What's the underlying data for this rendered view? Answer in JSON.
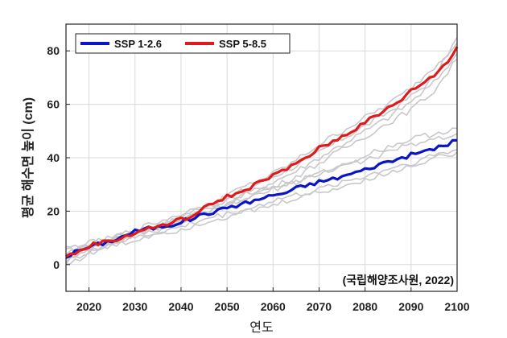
{
  "chart_data": {
    "type": "line",
    "title": "",
    "xlabel": "연도",
    "ylabel": "평균 해수면 높이 (cm)",
    "xlim": [
      2015,
      2100
    ],
    "ylim": [
      -10,
      90
    ],
    "xticks": [
      2020,
      2030,
      2040,
      2050,
      2060,
      2070,
      2080,
      2090,
      2100
    ],
    "yticks": [
      0,
      20,
      40,
      60,
      80
    ],
    "grid": true,
    "legend_position": "top-left",
    "annotation": "(국립해양조사원, 2022)",
    "series": [
      {
        "name": "SSP 1-2.6",
        "color": "#0a14c8",
        "points": [
          [
            2015,
            3
          ],
          [
            2018,
            5.5
          ],
          [
            2020,
            6.5
          ],
          [
            2022,
            7.5
          ],
          [
            2025,
            9
          ],
          [
            2028,
            11
          ],
          [
            2030,
            12.5
          ],
          [
            2033,
            13.5
          ],
          [
            2035,
            14
          ],
          [
            2038,
            15
          ],
          [
            2040,
            16
          ],
          [
            2043,
            17.5
          ],
          [
            2045,
            19
          ],
          [
            2048,
            20
          ],
          [
            2050,
            21.5
          ],
          [
            2053,
            22.5
          ],
          [
            2055,
            23.5
          ],
          [
            2058,
            25
          ],
          [
            2060,
            26
          ],
          [
            2063,
            27
          ],
          [
            2065,
            28.5
          ],
          [
            2068,
            30
          ],
          [
            2070,
            31
          ],
          [
            2073,
            32
          ],
          [
            2075,
            33
          ],
          [
            2078,
            34.5
          ],
          [
            2080,
            35.5
          ],
          [
            2083,
            37.5
          ],
          [
            2085,
            38.5
          ],
          [
            2088,
            40
          ],
          [
            2090,
            41
          ],
          [
            2093,
            42.5
          ],
          [
            2095,
            43.5
          ],
          [
            2098,
            45
          ],
          [
            2100,
            46.5
          ]
        ]
      },
      {
        "name": "SSP 5-8.5",
        "color": "#e01a1a",
        "points": [
          [
            2015,
            3
          ],
          [
            2018,
            5
          ],
          [
            2020,
            7
          ],
          [
            2022,
            8
          ],
          [
            2025,
            9
          ],
          [
            2028,
            10.5
          ],
          [
            2030,
            12
          ],
          [
            2033,
            13.5
          ],
          [
            2035,
            14.5
          ],
          [
            2038,
            15.5
          ],
          [
            2040,
            17
          ],
          [
            2043,
            18.5
          ],
          [
            2045,
            21
          ],
          [
            2048,
            24
          ],
          [
            2050,
            25.5
          ],
          [
            2053,
            27
          ],
          [
            2055,
            29
          ],
          [
            2058,
            31.5
          ],
          [
            2060,
            33.5
          ],
          [
            2063,
            35.5
          ],
          [
            2065,
            38
          ],
          [
            2068,
            41
          ],
          [
            2070,
            43.5
          ],
          [
            2073,
            46
          ],
          [
            2075,
            48
          ],
          [
            2078,
            51
          ],
          [
            2080,
            53.5
          ],
          [
            2083,
            56
          ],
          [
            2085,
            58.5
          ],
          [
            2088,
            62
          ],
          [
            2090,
            65
          ],
          [
            2093,
            68.5
          ],
          [
            2095,
            71
          ],
          [
            2098,
            76
          ],
          [
            2100,
            81.5
          ]
        ]
      }
    ],
    "ensemble_color": "#c8c8cc",
    "ensemble": [
      [
        [
          2015,
          5
        ],
        [
          2020,
          7
        ],
        [
          2025,
          9
        ],
        [
          2030,
          13
        ],
        [
          2035,
          14
        ],
        [
          2040,
          18
        ],
        [
          2045,
          22
        ],
        [
          2050,
          25
        ],
        [
          2055,
          29
        ],
        [
          2060,
          33
        ],
        [
          2065,
          37
        ],
        [
          2070,
          42
        ],
        [
          2075,
          47
        ],
        [
          2080,
          52
        ],
        [
          2085,
          57
        ],
        [
          2090,
          63
        ],
        [
          2095,
          70
        ],
        [
          2100,
          85
        ]
      ],
      [
        [
          2015,
          1
        ],
        [
          2020,
          5
        ],
        [
          2025,
          8
        ],
        [
          2030,
          11
        ],
        [
          2035,
          13
        ],
        [
          2040,
          16
        ],
        [
          2045,
          19
        ],
        [
          2050,
          23
        ],
        [
          2055,
          27
        ],
        [
          2060,
          31
        ],
        [
          2065,
          35
        ],
        [
          2070,
          40
        ],
        [
          2075,
          45
        ],
        [
          2080,
          50
        ],
        [
          2085,
          55
        ],
        [
          2090,
          61
        ],
        [
          2095,
          68
        ],
        [
          2100,
          79
        ]
      ],
      [
        [
          2015,
          4
        ],
        [
          2020,
          8
        ],
        [
          2025,
          10
        ],
        [
          2030,
          12
        ],
        [
          2035,
          15
        ],
        [
          2040,
          17
        ],
        [
          2045,
          21
        ],
        [
          2050,
          26
        ],
        [
          2055,
          30
        ],
        [
          2060,
          34
        ],
        [
          2065,
          39
        ],
        [
          2070,
          45
        ],
        [
          2075,
          50
        ],
        [
          2080,
          55
        ],
        [
          2085,
          60
        ],
        [
          2090,
          66
        ],
        [
          2095,
          74
        ],
        [
          2100,
          83
        ]
      ],
      [
        [
          2015,
          2
        ],
        [
          2020,
          6
        ],
        [
          2025,
          9
        ],
        [
          2030,
          12
        ],
        [
          2035,
          14
        ],
        [
          2040,
          17
        ],
        [
          2045,
          20
        ],
        [
          2050,
          22
        ],
        [
          2055,
          26
        ],
        [
          2060,
          29
        ],
        [
          2065,
          33
        ],
        [
          2070,
          38
        ],
        [
          2075,
          43
        ],
        [
          2080,
          48
        ],
        [
          2085,
          53
        ],
        [
          2090,
          58
        ],
        [
          2095,
          65
        ],
        [
          2100,
          77
        ]
      ],
      [
        [
          2015,
          6
        ],
        [
          2020,
          8
        ],
        [
          2025,
          10
        ],
        [
          2030,
          13
        ],
        [
          2035,
          16
        ],
        [
          2040,
          19
        ],
        [
          2045,
          22
        ],
        [
          2050,
          24
        ],
        [
          2055,
          27
        ],
        [
          2060,
          29
        ],
        [
          2065,
          31
        ],
        [
          2070,
          34
        ],
        [
          2075,
          37
        ],
        [
          2080,
          41
        ],
        [
          2085,
          44
        ],
        [
          2090,
          47
        ],
        [
          2095,
          49
        ],
        [
          2100,
          51
        ]
      ],
      [
        [
          2015,
          2
        ],
        [
          2020,
          5
        ],
        [
          2025,
          8
        ],
        [
          2030,
          10
        ],
        [
          2035,
          12
        ],
        [
          2040,
          14
        ],
        [
          2045,
          17
        ],
        [
          2050,
          19
        ],
        [
          2055,
          21
        ],
        [
          2060,
          24
        ],
        [
          2065,
          26
        ],
        [
          2070,
          28
        ],
        [
          2075,
          31
        ],
        [
          2080,
          33
        ],
        [
          2085,
          36
        ],
        [
          2090,
          38
        ],
        [
          2095,
          41
        ],
        [
          2100,
          43
        ]
      ],
      [
        [
          2015,
          4
        ],
        [
          2020,
          6
        ],
        [
          2025,
          9
        ],
        [
          2030,
          12
        ],
        [
          2035,
          14
        ],
        [
          2040,
          16
        ],
        [
          2045,
          19
        ],
        [
          2050,
          22
        ],
        [
          2055,
          25
        ],
        [
          2060,
          28
        ],
        [
          2065,
          31
        ],
        [
          2070,
          34
        ],
        [
          2075,
          37
        ],
        [
          2080,
          39
        ],
        [
          2085,
          42
        ],
        [
          2090,
          45
        ],
        [
          2095,
          47
        ],
        [
          2100,
          49
        ]
      ],
      [
        [
          2015,
          0
        ],
        [
          2020,
          4
        ],
        [
          2025,
          7
        ],
        [
          2030,
          9
        ],
        [
          2035,
          12
        ],
        [
          2040,
          13
        ],
        [
          2045,
          16
        ],
        [
          2050,
          18
        ],
        [
          2055,
          20
        ],
        [
          2060,
          22
        ],
        [
          2065,
          25
        ],
        [
          2070,
          27
        ],
        [
          2075,
          29
        ],
        [
          2080,
          32
        ],
        [
          2085,
          34
        ],
        [
          2090,
          37
        ],
        [
          2095,
          40
        ],
        [
          2100,
          42
        ]
      ]
    ]
  }
}
